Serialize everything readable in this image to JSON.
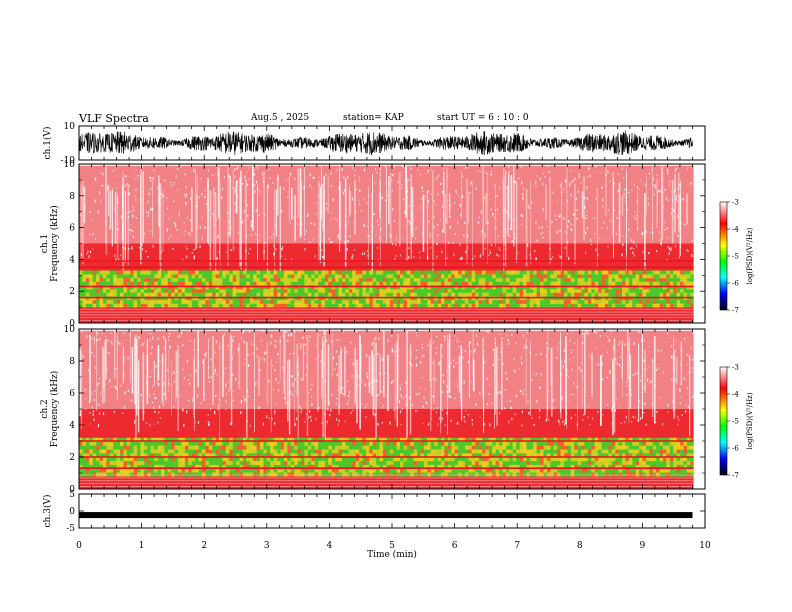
{
  "header": {
    "title": "VLF Spectra",
    "date": "Aug.5 , 2025",
    "station": "station= KAP",
    "start": "start UT = 6 : 10 : 0"
  },
  "colors": {
    "waveform": "#000000",
    "spectro_red": "#e8141e",
    "spectro_yellow": "#f0e619",
    "spectro_green": "#28e61e",
    "colorbar": [
      "#ffffff",
      "#ff0000",
      "#ffff00",
      "#00ff00",
      "#00ffff",
      "#0000ff",
      "#00007a",
      "#000000"
    ]
  },
  "chart_data": [
    {
      "type": "line",
      "name": "ch1-waveform",
      "ylabel": "ch.1(V)",
      "ylim": [
        -10,
        10
      ],
      "yticks": [
        "10",
        "-10"
      ],
      "xlim": [
        0,
        10
      ],
      "description_values": "noisy waveform, amplitude roughly -5 to 5 V, data to ~9.8 min"
    },
    {
      "type": "heatmap",
      "name": "ch1-spectrogram",
      "ylabel": "ch.1 Frequency (kHz)",
      "ylim": [
        0,
        10
      ],
      "yticks": [
        "0",
        "2",
        "4",
        "6",
        "8",
        "10"
      ],
      "xlim": [
        0,
        9.8
      ],
      "bands_kHz": [
        {
          "from": 0,
          "to": 0.6,
          "level": "red"
        },
        {
          "from": 1,
          "to": 3.3,
          "level": "green-yellow"
        },
        {
          "from": 3.3,
          "to": 10,
          "level": "red-white"
        }
      ],
      "colorbar": {
        "label": "log(PSD)(V²/Hz)",
        "ticks": [
          "-3",
          "-4",
          "-5",
          "-6",
          "-7"
        ],
        "range": [
          -7,
          -3
        ]
      }
    },
    {
      "type": "heatmap",
      "name": "ch2-spectrogram",
      "ylabel": "ch.2 Frequency (kHz)",
      "ylim": [
        0,
        10
      ],
      "yticks": [
        "0",
        "2",
        "4",
        "6",
        "8",
        "10"
      ],
      "xlim": [
        0,
        9.8
      ],
      "bands_kHz": [
        {
          "from": 0,
          "to": 0.6,
          "level": "red"
        },
        {
          "from": 0.8,
          "to": 3.2,
          "level": "green-yellow"
        },
        {
          "from": 3.2,
          "to": 10,
          "level": "red-white"
        }
      ],
      "colorbar": {
        "label": "log(PSD)(V²/Hz)",
        "ticks": [
          "-3",
          "-4",
          "-5",
          "-6",
          "-7"
        ],
        "range": [
          -7,
          -3
        ]
      }
    },
    {
      "type": "line",
      "name": "ch3-waveform",
      "ylabel": "ch.3(V)",
      "ylim": [
        -5,
        5
      ],
      "yticks": [
        "5",
        "0",
        "-5"
      ],
      "xlim": [
        0,
        10
      ],
      "level_V": -1.2,
      "xlabel": "Time (min)",
      "xticks": [
        "0",
        "1",
        "2",
        "3",
        "4",
        "5",
        "6",
        "7",
        "8",
        "9",
        "10"
      ]
    }
  ]
}
